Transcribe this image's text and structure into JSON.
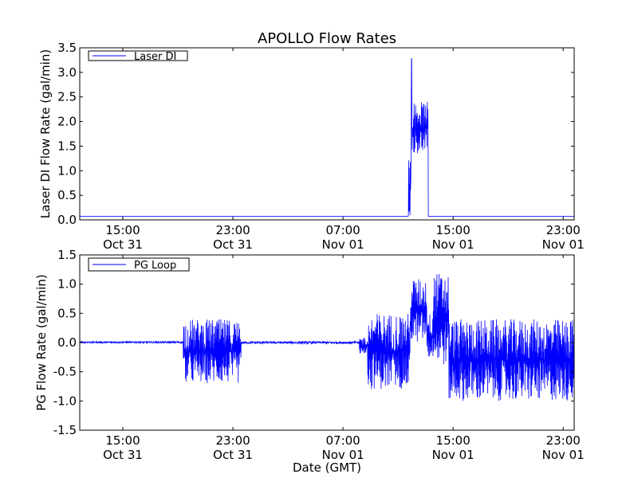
{
  "chart_data": [
    {
      "type": "line",
      "title": "APOLLO Flow Rates",
      "ylabel": "Laser DI Flow Rate (gal/min)",
      "xlabel": "",
      "ylim": [
        0,
        3.5
      ],
      "yticks": [
        "0.0",
        "0.5",
        "1.0",
        "1.5",
        "2.0",
        "2.5",
        "3.0",
        "3.5"
      ],
      "xlim_hours": [
        -3.13,
        32.8
      ],
      "xticks": [
        {
          "hour": 0,
          "time": "15:00",
          "date": "Oct 31"
        },
        {
          "hour": 8,
          "time": "23:00",
          "date": "Oct 31"
        },
        {
          "hour": 16,
          "time": "07:00",
          "date": "Nov 01"
        },
        {
          "hour": 24,
          "time": "15:00",
          "date": "Nov 01"
        },
        {
          "hour": 32,
          "time": "23:00",
          "date": "Nov 01"
        }
      ],
      "legend": {
        "label": "Laser DI",
        "placement": "top-left"
      },
      "color": "#0000ff",
      "series": [
        {
          "name": "Laser DI",
          "segments": [
            {
              "start_h": -3.13,
              "end_h": 20.75,
              "min": 0.07,
              "max": 0.07
            },
            {
              "start_h": 20.75,
              "end_h": 20.95,
              "min": 0.07,
              "max": 1.35
            },
            {
              "start_h": 20.95,
              "end_h": 22.2,
              "min": 1.35,
              "max": 2.4,
              "peak": 3.28,
              "peak_h": 20.98
            },
            {
              "start_h": 22.2,
              "end_h": 32.8,
              "min": 0.07,
              "max": 0.07
            }
          ]
        }
      ]
    },
    {
      "type": "line",
      "title": "",
      "ylabel": "PG Flow Rate (gal/min)",
      "xlabel": "Date (GMT)",
      "ylim": [
        -1.5,
        1.5
      ],
      "yticks": [
        "-1.5",
        "-1.0",
        "-0.5",
        "0.0",
        "0.5",
        "1.0",
        "1.5"
      ],
      "xlim_hours": [
        -3.13,
        32.8
      ],
      "xticks": [
        {
          "hour": 0,
          "time": "15:00",
          "date": "Oct 31"
        },
        {
          "hour": 8,
          "time": "23:00",
          "date": "Oct 31"
        },
        {
          "hour": 16,
          "time": "07:00",
          "date": "Nov 01"
        },
        {
          "hour": 24,
          "time": "15:00",
          "date": "Nov 01"
        },
        {
          "hour": 32,
          "time": "23:00",
          "date": "Nov 01"
        }
      ],
      "legend": {
        "label": "PG Loop",
        "placement": "top-left"
      },
      "color": "#0000ff",
      "series": [
        {
          "name": "PG Loop",
          "segments": [
            {
              "start_h": -3.13,
              "end_h": 4.4,
              "min": -0.01,
              "max": 0.02
            },
            {
              "start_h": 4.4,
              "end_h": 8.6,
              "min": -0.7,
              "max": 0.4
            },
            {
              "start_h": 8.6,
              "end_h": 17.2,
              "min": -0.02,
              "max": 0.02
            },
            {
              "start_h": 17.2,
              "end_h": 17.8,
              "min": -0.2,
              "max": 0.1
            },
            {
              "start_h": 17.8,
              "end_h": 20.9,
              "min": -0.8,
              "max": 0.5
            },
            {
              "start_h": 20.9,
              "end_h": 22.1,
              "min": 0.0,
              "max": 1.1
            },
            {
              "start_h": 22.1,
              "end_h": 22.5,
              "min": -0.3,
              "max": 0.5
            },
            {
              "start_h": 22.5,
              "end_h": 23.7,
              "min": -0.4,
              "max": 1.2
            },
            {
              "start_h": 23.7,
              "end_h": 32.8,
              "min": -1.0,
              "max": 0.4
            }
          ]
        }
      ]
    }
  ]
}
